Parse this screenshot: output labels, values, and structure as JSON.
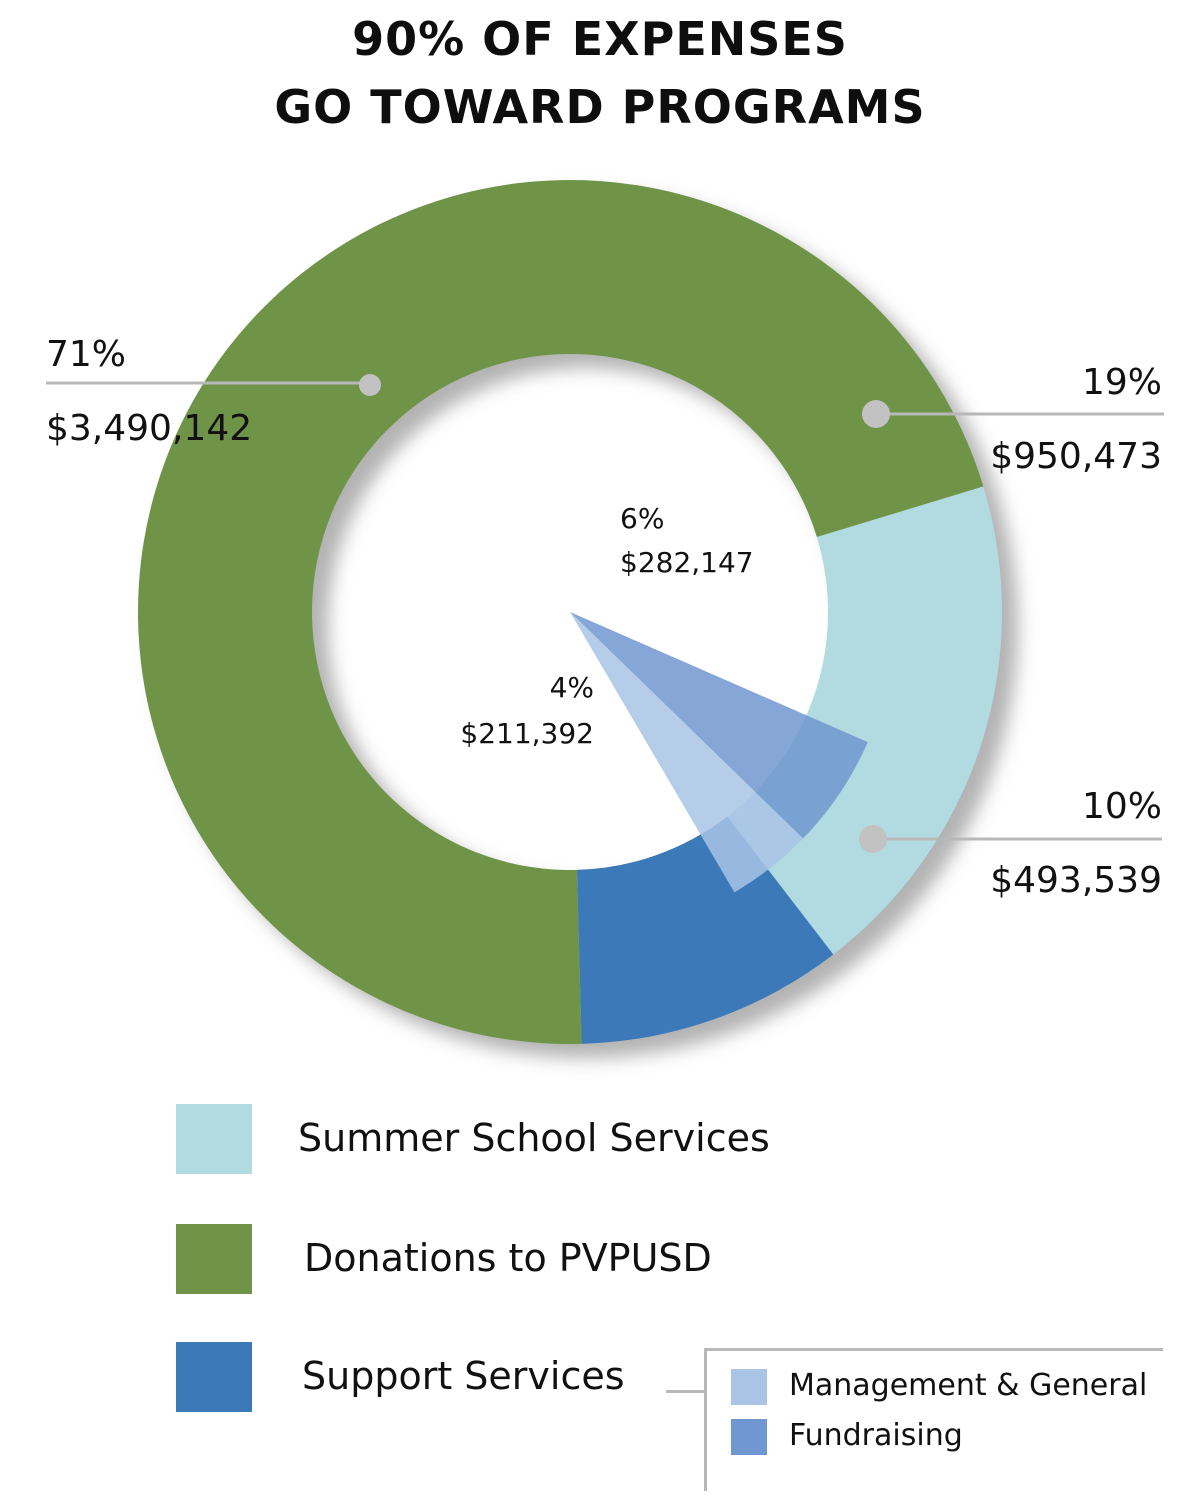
{
  "title": {
    "line1": "90% OF EXPENSES",
    "line2": "GO TOWARD PROGRAMS"
  },
  "colors": {
    "summer_school": "#b1dbe1",
    "donations": "#6f9448",
    "support_services": "#3b79b9",
    "management_general": "#a9c4e5",
    "fundraising": "#7097cf",
    "leader_line": "#b8b8b8",
    "leader_dot": "#c2c2c2"
  },
  "chart_data": {
    "type": "pie",
    "style": "donut",
    "title": "90% OF EXPENSES GO TOWARD PROGRAMS",
    "slices": [
      {
        "name": "Summer School Services",
        "percent": 19,
        "amount": 950473,
        "percent_label": "19%",
        "amount_label": "$950,473",
        "color": "#b1dbe1"
      },
      {
        "name": "Support Services",
        "percent": 10,
        "amount": 493539,
        "percent_label": "10%",
        "amount_label": "$493,539",
        "color": "#3b79b9",
        "components": [
          {
            "name": "Fundraising",
            "percent": 6,
            "amount": 282147,
            "percent_label": "6%",
            "amount_label": "$282,147",
            "color": "#7097cf"
          },
          {
            "name": "Management & General",
            "percent": 4,
            "amount": 211392,
            "percent_label": "4%",
            "amount_label": "$211,392",
            "color": "#a9c4e5"
          }
        ]
      },
      {
        "name": "Donations to PVPUSD",
        "percent": 71,
        "amount": 3490142,
        "percent_label": "71%",
        "amount_label": "$3,490,142",
        "color": "#6f9448"
      }
    ],
    "legend_position": "bottom"
  },
  "legend": {
    "items": [
      {
        "label": "Summer School Services"
      },
      {
        "label": "Donations to PVPUSD"
      },
      {
        "label": "Support Services"
      }
    ],
    "sub_items": [
      {
        "label": "Management & General"
      },
      {
        "label": "Fundraising"
      }
    ]
  }
}
